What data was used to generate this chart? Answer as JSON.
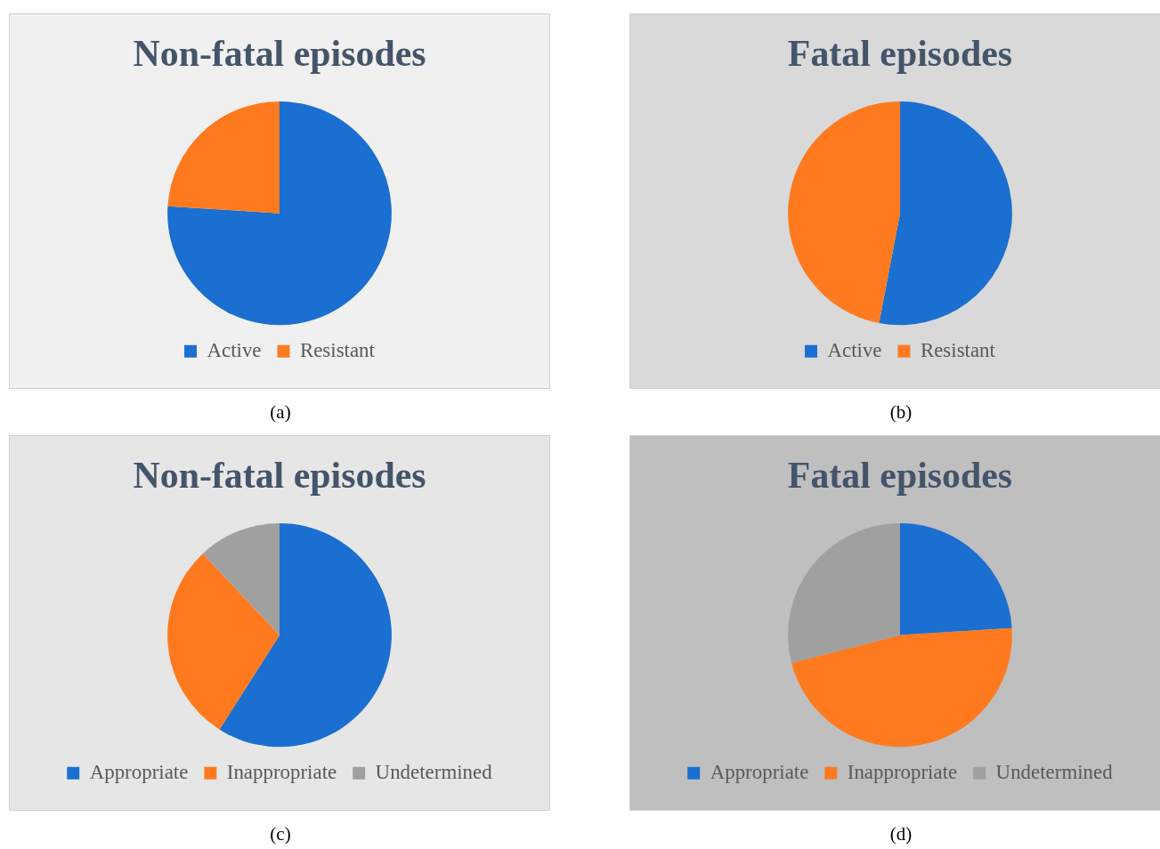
{
  "chart_data": [
    {
      "type": "pie",
      "title": "Non-fatal episodes",
      "categories": [
        "Active",
        "Resistant"
      ],
      "values": [
        76,
        24
      ],
      "colors": [
        "#1a6fd0",
        "#ff7a1f"
      ],
      "legend": "bottom",
      "annotations": [
        "(a)"
      ]
    },
    {
      "type": "pie",
      "title": "Fatal episodes",
      "categories": [
        "Active",
        "Resistant"
      ],
      "values": [
        53,
        47
      ],
      "colors": [
        "#1a6fd0",
        "#ff7a1f"
      ],
      "legend": "bottom",
      "annotations": [
        "(b)"
      ]
    },
    {
      "type": "pie",
      "title": "Non-fatal episodes",
      "categories": [
        "Appropriate",
        "Inappropriate",
        "Undetermined"
      ],
      "values": [
        59,
        29,
        12
      ],
      "colors": [
        "#1a6fd0",
        "#ff7a1f",
        "#a0a0a0"
      ],
      "legend": "bottom",
      "annotations": [
        "(c)"
      ]
    },
    {
      "type": "pie",
      "title": "Fatal episodes",
      "categories": [
        "Appropriate",
        "Inappropriate",
        "Undetermined"
      ],
      "values": [
        24,
        47,
        29
      ],
      "colors": [
        "#1a6fd0",
        "#ff7a1f",
        "#a0a0a0"
      ],
      "legend": "bottom",
      "annotations": [
        "(d)"
      ]
    }
  ]
}
